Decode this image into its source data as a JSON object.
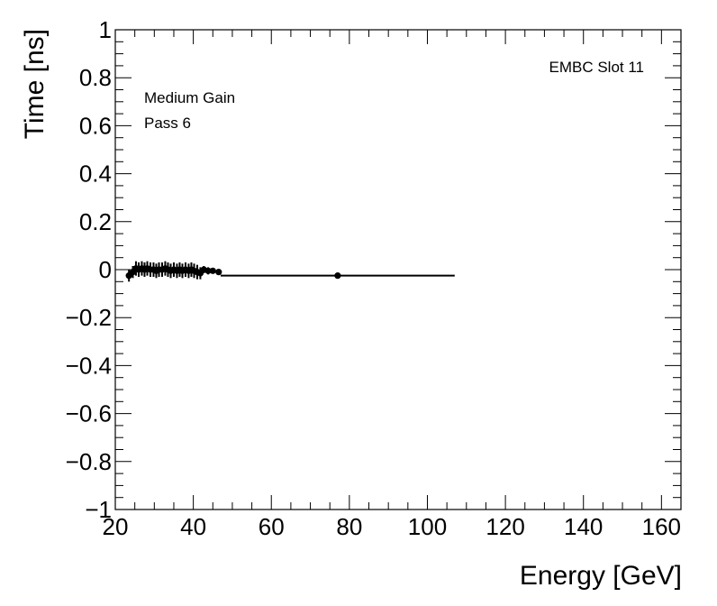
{
  "chart_data": {
    "type": "scatter",
    "title": "",
    "xlabel": "Energy [GeV]",
    "ylabel": "Time [ns]",
    "xlim": [
      20,
      165
    ],
    "ylim": [
      -1,
      1
    ],
    "x_ticks": [
      20,
      40,
      60,
      80,
      100,
      120,
      140,
      160
    ],
    "x_tick_labels": [
      "20",
      "40",
      "60",
      "80",
      "100",
      "120",
      "140",
      "160"
    ],
    "y_ticks": [
      -1,
      -0.8,
      -0.6,
      -0.4,
      -0.2,
      0,
      0.2,
      0.4,
      0.6,
      0.8,
      1
    ],
    "y_tick_labels": [
      "−1",
      "−0.8",
      "−0.6",
      "−0.4",
      "−0.2",
      "0",
      "0.2",
      "0.4",
      "0.6",
      "0.8",
      "1"
    ],
    "grid": false,
    "annotations": {
      "label": "EMBC Slot 11",
      "gain": "Medium Gain",
      "pass": "Pass 6"
    },
    "series": [
      {
        "marker": "circle",
        "color": "#000000",
        "points": [
          {
            "x": 23.5,
            "y": -0.025,
            "xerr": 0.3,
            "yerr": 0.025
          },
          {
            "x": 24.5,
            "y": -0.01,
            "xerr": 0.3,
            "yerr": 0.025
          },
          {
            "x": 25.3,
            "y": 0.005,
            "xerr": 0.3,
            "yerr": 0.03
          },
          {
            "x": 26.0,
            "y": 0.0,
            "xerr": 0.3,
            "yerr": 0.03
          },
          {
            "x": 26.8,
            "y": 0.005,
            "xerr": 0.3,
            "yerr": 0.03
          },
          {
            "x": 27.5,
            "y": 0.0,
            "xerr": 0.3,
            "yerr": 0.03
          },
          {
            "x": 28.2,
            "y": 0.005,
            "xerr": 0.3,
            "yerr": 0.03
          },
          {
            "x": 29.0,
            "y": 0.0,
            "xerr": 0.3,
            "yerr": 0.03
          },
          {
            "x": 29.8,
            "y": 0.0,
            "xerr": 0.3,
            "yerr": 0.03
          },
          {
            "x": 30.5,
            "y": -0.005,
            "xerr": 0.3,
            "yerr": 0.03
          },
          {
            "x": 31.2,
            "y": 0.0,
            "xerr": 0.3,
            "yerr": 0.03
          },
          {
            "x": 32.0,
            "y": 0.0,
            "xerr": 0.3,
            "yerr": 0.03
          },
          {
            "x": 32.8,
            "y": 0.005,
            "xerr": 0.3,
            "yerr": 0.03
          },
          {
            "x": 33.5,
            "y": 0.0,
            "xerr": 0.3,
            "yerr": 0.03
          },
          {
            "x": 34.2,
            "y": -0.005,
            "xerr": 0.3,
            "yerr": 0.03
          },
          {
            "x": 35.0,
            "y": 0.0,
            "xerr": 0.3,
            "yerr": 0.03
          },
          {
            "x": 35.8,
            "y": -0.005,
            "xerr": 0.3,
            "yerr": 0.03
          },
          {
            "x": 36.5,
            "y": 0.0,
            "xerr": 0.3,
            "yerr": 0.03
          },
          {
            "x": 37.2,
            "y": -0.005,
            "xerr": 0.3,
            "yerr": 0.03
          },
          {
            "x": 38.0,
            "y": 0.0,
            "xerr": 0.3,
            "yerr": 0.03
          },
          {
            "x": 38.8,
            "y": -0.005,
            "xerr": 0.3,
            "yerr": 0.03
          },
          {
            "x": 39.5,
            "y": 0.0,
            "xerr": 0.3,
            "yerr": 0.03
          },
          {
            "x": 40.2,
            "y": -0.005,
            "xerr": 0.3,
            "yerr": 0.03
          },
          {
            "x": 41.0,
            "y": -0.01,
            "xerr": 0.3,
            "yerr": 0.03
          },
          {
            "x": 41.8,
            "y": -0.015,
            "xerr": 0.3,
            "yerr": 0.025
          },
          {
            "x": 42.7,
            "y": 0.0,
            "xerr": 0.3,
            "yerr": 0.015
          },
          {
            "x": 43.8,
            "y": -0.005,
            "xerr": 0.3,
            "yerr": 0.015
          },
          {
            "x": 45.0,
            "y": -0.005,
            "xerr": 0.3,
            "yerr": 0.012
          },
          {
            "x": 46.5,
            "y": -0.01,
            "xerr": 0.5,
            "yerr": 0.01
          },
          {
            "x": 77.0,
            "y": -0.025,
            "xerr": 30.0,
            "yerr": 0.0
          }
        ]
      }
    ]
  }
}
